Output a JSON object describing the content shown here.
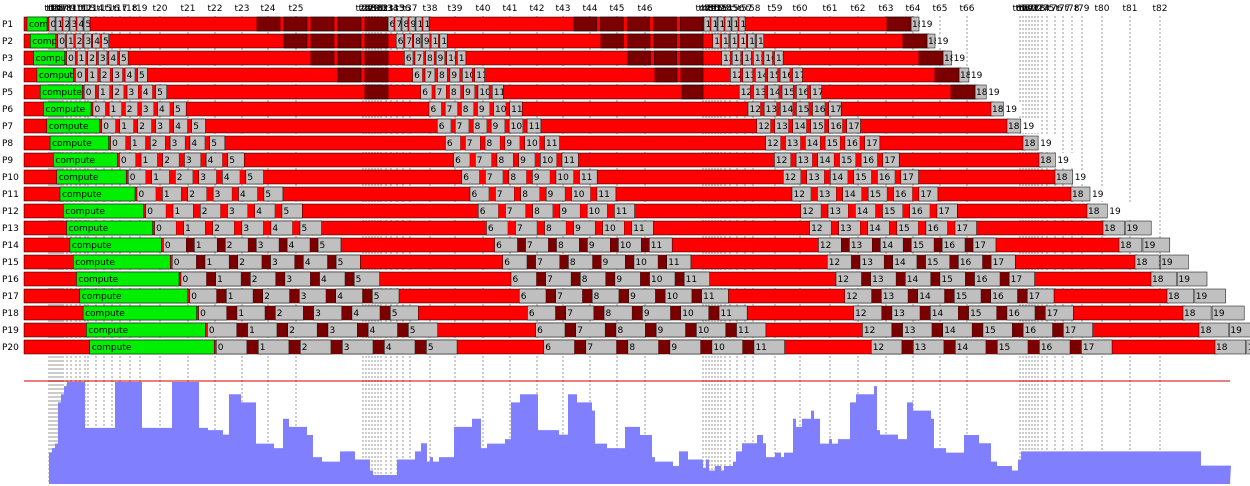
{
  "chart_data": {
    "type": "gantt",
    "time_labels": [
      "t0",
      "t1",
      "t2",
      "t3",
      "t4",
      "t5",
      "t6",
      "t7",
      "t8",
      "t9",
      "t10",
      "t11",
      "t12",
      "t13",
      "t14",
      "t15",
      "t16",
      "t17",
      "t18",
      "t19",
      "t20",
      "t21",
      "t22",
      "t23",
      "t24",
      "t25",
      "t26",
      "t27",
      "t28",
      "t29",
      "t30",
      "t31",
      "t32",
      "t33",
      "t34",
      "t35",
      "t36",
      "t37",
      "t38",
      "t39",
      "t40",
      "t41",
      "t42",
      "t43",
      "t44",
      "t45",
      "t46",
      "t47",
      "t48",
      "t49",
      "t50",
      "t51",
      "t52",
      "t53",
      "t54",
      "t55",
      "t56",
      "t57",
      "t58",
      "t59",
      "t60",
      "t61",
      "t62",
      "t63",
      "t64",
      "t65",
      "t66",
      "t67",
      "t68",
      "t69",
      "t70",
      "t71",
      "t72",
      "t73",
      "t74",
      "t75",
      "t76",
      "t77",
      "t78",
      "t79",
      "t80",
      "t81",
      "t82"
    ],
    "processes": [
      "P1",
      "P2",
      "P3",
      "P4",
      "P5",
      "P6",
      "P7",
      "P8",
      "P9",
      "P10",
      "P11",
      "P12",
      "P13",
      "P14",
      "P15",
      "P16",
      "P17",
      "P18",
      "P19",
      "P20"
    ],
    "task_labels": {
      "compute": "compute",
      "steps": [
        "0",
        "1",
        "2",
        "3",
        "4",
        "5",
        "6",
        "7",
        "8",
        "9",
        "10",
        "11",
        "12",
        "13",
        "14",
        "15",
        "16",
        "17",
        "18",
        "19"
      ]
    },
    "colors": {
      "compute": "#00ee00",
      "step": "#c0c0c0",
      "waiting": "#ff0000",
      "blocked": "#7a0000",
      "load": "#8080ff",
      "baseline": "#d00000",
      "outline": "#000000",
      "tick_line": "#555555"
    },
    "utilization_series": "P1–P20 active count over time (rendered as filled area in load color)"
  }
}
